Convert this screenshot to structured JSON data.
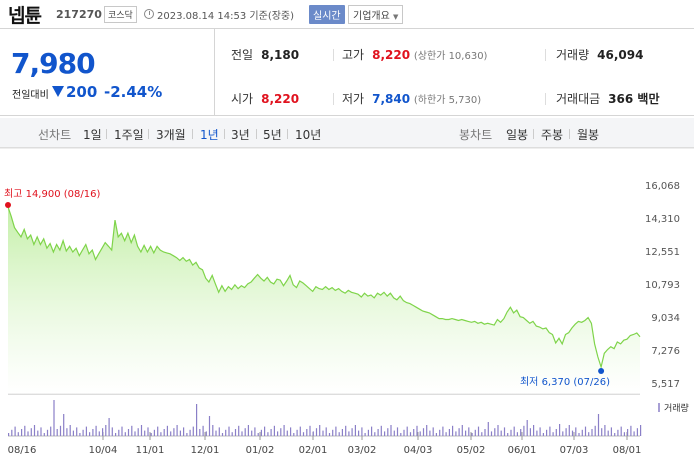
{
  "header": {
    "name": "넵튠",
    "code": "217270",
    "market": "코스닥",
    "timestamp": "2023.08.14 14:53 기준(장중)",
    "realtime": "실시간",
    "company_info": "기업개요"
  },
  "price": {
    "current": "7,980",
    "change_label": "전일대비",
    "change": "200",
    "rate": "-2.44%"
  },
  "stats": {
    "prev_label": "전일",
    "prev": "8,180",
    "high_label": "고가",
    "high": "8,220",
    "upper_label": "(상한가 10,630)",
    "volume_label": "거래량",
    "volume": "46,094",
    "open_label": "시가",
    "open": "8,220",
    "low_label": "저가",
    "low": "7,840",
    "lower_label": "(하한가 5,730)",
    "amount_label": "거래대금",
    "amount": "366 백만"
  },
  "tabs": {
    "line_label": "선차트",
    "line": [
      "1일",
      "1주일",
      "3개월",
      "1년",
      "3년",
      "5년",
      "10년"
    ],
    "active": "1년",
    "candle_label": "봉차트",
    "candle": [
      "일봉",
      "주봉",
      "월봉"
    ]
  },
  "chart_data": {
    "type": "area",
    "y_ticks": [
      "16,068",
      "14,310",
      "12,551",
      "10,793",
      "9,034",
      "7,276",
      "5,517"
    ],
    "ylim": [
      5517,
      16068
    ],
    "x_ticks": [
      "08/16",
      "10/04",
      "11/01",
      "12/01",
      "01/02",
      "02/01",
      "03/02",
      "04/03",
      "05/02",
      "06/01",
      "07/03",
      "08/01"
    ],
    "max_label": "최고 14,900 (08/16)",
    "min_label": "최저 6,370 (07/26)",
    "volume_label": "거래량",
    "colors": {
      "line": "#7fd44a",
      "fill_top": "#c4efa8",
      "fill_bottom": "#ffffff",
      "max": "#e0121e",
      "min": "#1155cc"
    },
    "series": [
      {
        "values": [
          14900,
          14400,
          13800,
          13550,
          13300,
          13700,
          13200,
          13400,
          12900,
          13300,
          12900,
          13200,
          12700,
          12950,
          12500,
          12900,
          12600,
          13100,
          12550,
          12800,
          12500,
          12700,
          12300,
          12600,
          12900,
          12400,
          12600,
          12100,
          12400,
          12700,
          13000,
          12800,
          12600,
          14200,
          13300,
          13500,
          13100,
          13500,
          13000,
          13400,
          12800,
          12500,
          12850,
          12500,
          12800,
          12450,
          12800,
          12600,
          12500,
          12450,
          12400,
          12300,
          12200,
          12050,
          12200,
          12000,
          12100,
          11800,
          11950,
          11650,
          11550,
          11100,
          10900,
          11250,
          10800,
          10350,
          10700,
          10400,
          10650,
          10500,
          10750,
          10550,
          10700,
          10600,
          10800,
          10900,
          11100,
          11300,
          11100,
          10950,
          11150,
          10900,
          10800,
          11050,
          11000,
          10700,
          10950,
          11250,
          10750,
          10600,
          10950,
          10850,
          10700,
          10550,
          10400,
          10650,
          10550,
          10500,
          10650,
          10500,
          10600,
          10450,
          10550,
          10400,
          10300,
          10450,
          10350,
          10300,
          10250,
          10100,
          10300,
          10150,
          10200,
          10050,
          10300,
          10200,
          10350,
          10150,
          10300,
          10050,
          9950,
          10150,
          9900,
          9800,
          9750,
          9650,
          9550,
          9450,
          9350,
          9300,
          9250,
          9150,
          9050,
          8950,
          8950,
          8900,
          8900,
          8950,
          8900,
          8850,
          8900,
          8850,
          8800,
          8750,
          8800,
          8700,
          8750,
          8650,
          8700,
          8650,
          8600,
          8900,
          8750,
          8950,
          9300,
          9550,
          9250,
          9400,
          9050,
          9000,
          8850,
          8700,
          8800,
          8550,
          8500,
          8400,
          8450,
          8200,
          8100,
          7650,
          7900,
          7600,
          8100,
          8200,
          8450,
          8650,
          8800,
          8750,
          8850,
          9000,
          8700,
          7600,
          6900,
          6370,
          7100,
          7300,
          7450,
          7350,
          7700,
          7600,
          7800,
          7850,
          8050,
          8100,
          8180,
          7980
        ]
      }
    ]
  }
}
